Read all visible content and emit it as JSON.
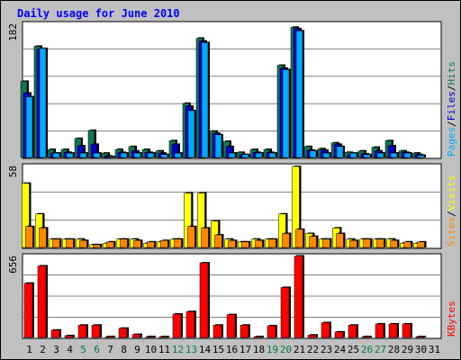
{
  "title": "Daily usage for June 2010",
  "colors": {
    "hits": "#117755",
    "files": "#0000cc",
    "pages": "#00aaff",
    "visits": "#ffff00",
    "sites": "#ff8800",
    "kbytes": "#ff0000",
    "panel_bg": "#ffffff",
    "frame_bg": "#c0c0c0",
    "grid": "#808080",
    "title": "#0000ff",
    "weekend_label": "#008040"
  },
  "chart_data": [
    {
      "type": "bar",
      "panel": "hits-files-pages",
      "scale_max_label": "182",
      "ylim": [
        0,
        182
      ],
      "legend": [
        {
          "key": "pages",
          "label": "Pages"
        },
        {
          "key": "files",
          "label": "Files"
        },
        {
          "key": "hits",
          "label": "Hits"
        }
      ],
      "separator": "/",
      "x": [
        1,
        2,
        3,
        4,
        5,
        6,
        7,
        8,
        9,
        10,
        11,
        12,
        13,
        14,
        15,
        16,
        17,
        18,
        19,
        20,
        21,
        22,
        23,
        24,
        25,
        26,
        27,
        28,
        29,
        30,
        31
      ],
      "series": [
        {
          "name": "Hits",
          "key": "hits",
          "values": [
            104,
            152,
            11,
            11,
            26,
            37,
            6,
            11,
            15,
            11,
            9,
            23,
            74,
            163,
            36,
            22,
            7,
            11,
            11,
            126,
            178,
            15,
            12,
            20,
            7,
            9,
            14,
            23,
            9,
            6,
            0
          ]
        },
        {
          "name": "Files",
          "key": "files",
          "values": [
            88,
            148,
            6,
            7,
            16,
            18,
            2,
            7,
            9,
            7,
            6,
            18,
            70,
            159,
            33,
            15,
            4,
            7,
            7,
            122,
            176,
            10,
            10,
            18,
            4,
            5,
            9,
            16,
            7,
            4,
            0
          ]
        },
        {
          "name": "Pages",
          "key": "pages",
          "values": [
            83,
            149,
            6,
            6,
            6,
            6,
            1,
            6,
            6,
            6,
            4,
            6,
            64,
            157,
            31,
            6,
            4,
            6,
            6,
            120,
            173,
            9,
            6,
            15,
            6,
            4,
            6,
            6,
            6,
            3,
            0
          ]
        }
      ]
    },
    {
      "type": "bar",
      "panel": "visits-sites",
      "scale_max_label": "58",
      "ylim": [
        0,
        58
      ],
      "legend": [
        {
          "key": "sites",
          "label": "Sites"
        },
        {
          "key": "visits",
          "label": "Visits"
        }
      ],
      "separator": "/",
      "x": [
        1,
        2,
        3,
        4,
        5,
        6,
        7,
        8,
        9,
        10,
        11,
        12,
        13,
        14,
        15,
        16,
        17,
        18,
        19,
        20,
        21,
        22,
        23,
        24,
        25,
        26,
        27,
        28,
        29,
        30,
        31
      ],
      "series": [
        {
          "name": "Visits",
          "key": "visits",
          "values": [
            46,
            24,
            6,
            6,
            6,
            2,
            3,
            6,
            6,
            3,
            4,
            6,
            39,
            39,
            19,
            6,
            4,
            6,
            6,
            24,
            58,
            10,
            6,
            14,
            6,
            6,
            6,
            6,
            3,
            3,
            0
          ]
        },
        {
          "name": "Sites",
          "key": "sites",
          "values": [
            15,
            14,
            6,
            6,
            5,
            2,
            4,
            6,
            5,
            4,
            5,
            6,
            15,
            14,
            9,
            5,
            4,
            5,
            6,
            10,
            13,
            8,
            6,
            10,
            5,
            6,
            6,
            5,
            4,
            4,
            0
          ]
        }
      ]
    },
    {
      "type": "bar",
      "panel": "kbytes",
      "scale_max_label": "656",
      "ylim": [
        0,
        656
      ],
      "legend": [
        {
          "key": "kbytes",
          "label": "KBytes"
        }
      ],
      "x": [
        1,
        2,
        3,
        4,
        5,
        6,
        7,
        8,
        9,
        10,
        11,
        12,
        13,
        14,
        15,
        16,
        17,
        18,
        19,
        20,
        21,
        22,
        23,
        24,
        25,
        26,
        27,
        28,
        29,
        30,
        31
      ],
      "series": [
        {
          "name": "KBytes",
          "key": "kbytes",
          "values": [
            440,
            580,
            60,
            15,
            100,
            100,
            5,
            75,
            25,
            5,
            5,
            190,
            210,
            605,
            100,
            185,
            100,
            5,
            95,
            405,
            660,
            20,
            120,
            45,
            100,
            5,
            110,
            110,
            110,
            5,
            0
          ]
        }
      ]
    }
  ],
  "x_axis": {
    "labels": [
      "1",
      "2",
      "3",
      "4",
      "5",
      "6",
      "7",
      "8",
      "9",
      "10",
      "11",
      "12",
      "13",
      "14",
      "15",
      "16",
      "17",
      "18",
      "19",
      "20",
      "21",
      "22",
      "23",
      "24",
      "25",
      "26",
      "27",
      "28",
      "29",
      "30",
      "31"
    ],
    "weekend_days": [
      5,
      6,
      12,
      13,
      19,
      20,
      26,
      27
    ]
  }
}
